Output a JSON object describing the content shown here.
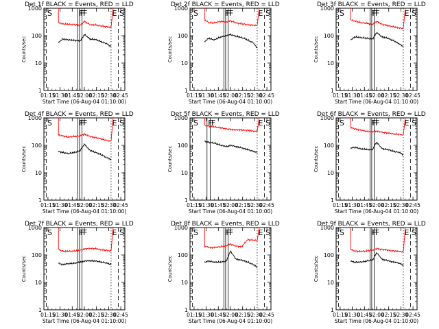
{
  "figure": {
    "xtick_labels": [
      "01:15",
      "01:30",
      "01:45",
      "02:00",
      "02:15",
      "02:30",
      "02:45"
    ],
    "ytick_labels": [
      "1",
      "10",
      "100",
      "1000"
    ],
    "ylabel": "Counts/sec",
    "xlabel": "Start Time (06-Aug-04 01:10:00)",
    "colors": {
      "events": "#000000",
      "lld": "#ff0000",
      "axes": "#000000",
      "background": "#ffffff"
    }
  },
  "chart_data": [
    {
      "type": "line",
      "title": "Det 1f BLACK = Events, RED = LLD",
      "xlabel": "Start Time (06-Aug-04 01:10:00)",
      "ylabel": "Counts/sec",
      "yscale": "log",
      "xlim": [
        "01:10",
        "02:50"
      ],
      "ylim": [
        1,
        1000
      ],
      "x": [
        "01:28",
        "01:33",
        "01:40",
        "01:48",
        "01:55",
        "02:00",
        "02:07",
        "02:14",
        "02:21",
        "02:28",
        "02:33"
      ],
      "series": [
        {
          "name": "BLACK = Events",
          "values": [
            55,
            75,
            70,
            68,
            64,
            110,
            75,
            72,
            60,
            50,
            40
          ]
        },
        {
          "name": "RED = LLD",
          "values": [
            300,
            270,
            260,
            250,
            240,
            330,
            250,
            245,
            225,
            210,
            200
          ]
        }
      ],
      "markers": [
        {
          "label": "S",
          "time": "01:13"
        },
        {
          "label": "F",
          "time": "01:52"
        },
        {
          "label": "F",
          "time": "01:54"
        },
        {
          "label": "F",
          "time": "01:57"
        },
        {
          "label": "E",
          "time": "02:33"
        },
        {
          "label": "S",
          "time": "02:42"
        }
      ]
    },
    {
      "type": "line",
      "title": "Det 2f BLACK = Events, RED = LLD",
      "xlabel": "Start Time (06-Aug-04 01:10:00)",
      "ylabel": "Counts/sec",
      "yscale": "log",
      "xlim": [
        "01:10",
        "02:50"
      ],
      "ylim": [
        1,
        1000
      ],
      "x": [
        "01:28",
        "01:33",
        "01:40",
        "01:48",
        "01:55",
        "02:00",
        "02:07",
        "02:14",
        "02:21",
        "02:28",
        "02:33"
      ],
      "series": [
        {
          "name": "BLACK = Events",
          "values": [
            60,
            80,
            70,
            90,
            100,
            110,
            95,
            85,
            70,
            55,
            35
          ]
        },
        {
          "name": "RED = LLD",
          "values": [
            380,
            300,
            290,
            330,
            310,
            350,
            290,
            270,
            250,
            240,
            230
          ]
        }
      ],
      "markers": [
        {
          "label": "S",
          "time": "01:13"
        },
        {
          "label": "F",
          "time": "01:52"
        },
        {
          "label": "F",
          "time": "01:54"
        },
        {
          "label": "F",
          "time": "01:57"
        },
        {
          "label": "E",
          "time": "02:33"
        },
        {
          "label": "S",
          "time": "02:42"
        }
      ]
    },
    {
      "type": "line",
      "title": "Det 3f BLACK = Events, RED = LLD",
      "xlabel": "Start Time (06-Aug-04 01:10:00)",
      "ylabel": "Counts/sec",
      "yscale": "log",
      "xlim": [
        "01:10",
        "02:50"
      ],
      "ylim": [
        1,
        1000
      ],
      "x": [
        "01:28",
        "01:33",
        "01:40",
        "01:48",
        "01:55",
        "02:00",
        "02:07",
        "02:14",
        "02:21",
        "02:28",
        "02:33"
      ],
      "series": [
        {
          "name": "BLACK = Events",
          "values": [
            70,
            90,
            85,
            80,
            75,
            130,
            90,
            80,
            65,
            50,
            40
          ]
        },
        {
          "name": "RED = LLD",
          "values": [
            380,
            340,
            300,
            280,
            260,
            330,
            260,
            230,
            210,
            190,
            185
          ]
        }
      ],
      "markers": [
        {
          "label": "S",
          "time": "01:13"
        },
        {
          "label": "F",
          "time": "01:52"
        },
        {
          "label": "F",
          "time": "01:54"
        },
        {
          "label": "F",
          "time": "01:57"
        },
        {
          "label": "E",
          "time": "02:33"
        },
        {
          "label": "S",
          "time": "02:42"
        }
      ]
    },
    {
      "type": "line",
      "title": "Det 4f BLACK = Events, RED = LLD",
      "xlabel": "Start Time (06-Aug-04 01:10:00)",
      "ylabel": "Counts/sec",
      "yscale": "log",
      "xlim": [
        "01:10",
        "02:50"
      ],
      "ylim": [
        1,
        1000
      ],
      "x": [
        "01:28",
        "01:33",
        "01:40",
        "01:48",
        "01:55",
        "02:00",
        "02:07",
        "02:14",
        "02:21",
        "02:28",
        "02:33"
      ],
      "series": [
        {
          "name": "BLACK = Events",
          "values": [
            60,
            55,
            50,
            55,
            65,
            110,
            65,
            55,
            45,
            35,
            30
          ]
        },
        {
          "name": "RED = LLD",
          "values": [
            240,
            220,
            200,
            210,
            220,
            260,
            210,
            190,
            170,
            150,
            140
          ]
        }
      ],
      "markers": [
        {
          "label": "S",
          "time": "01:13"
        },
        {
          "label": "F",
          "time": "01:52"
        },
        {
          "label": "F",
          "time": "01:54"
        },
        {
          "label": "F",
          "time": "01:57"
        },
        {
          "label": "E",
          "time": "02:33"
        },
        {
          "label": "S",
          "time": "02:42"
        }
      ]
    },
    {
      "type": "line",
      "title": "Det 5f BLACK = Events, RED = LLD",
      "xlabel": "Start Time (06-Aug-04 01:10:00)",
      "ylabel": "Counts/sec",
      "yscale": "log",
      "xlim": [
        "01:10",
        "02:50"
      ],
      "ylim": [
        1,
        1000
      ],
      "x": [
        "01:28",
        "01:33",
        "01:40",
        "01:48",
        "01:55",
        "02:00",
        "02:07",
        "02:14",
        "02:21",
        "02:28",
        "02:33"
      ],
      "series": [
        {
          "name": "BLACK = Events",
          "values": [
            140,
            130,
            120,
            100,
            90,
            100,
            90,
            80,
            70,
            60,
            55
          ]
        },
        {
          "name": "RED = LLD",
          "values": [
            550,
            500,
            470,
            430,
            400,
            380,
            370,
            360,
            350,
            330,
            320
          ]
        }
      ],
      "markers": [
        {
          "label": "S",
          "time": "01:13"
        },
        {
          "label": "F",
          "time": "01:31"
        },
        {
          "label": "F",
          "time": "01:35"
        },
        {
          "label": "E",
          "time": "02:33"
        },
        {
          "label": "S",
          "time": "02:42"
        }
      ]
    },
    {
      "type": "line",
      "title": "Det 6f BLACK = Events, RED = LLD",
      "xlabel": "Start Time (06-Aug-04 01:10:00)",
      "ylabel": "Counts/sec",
      "yscale": "log",
      "xlim": [
        "01:10",
        "02:50"
      ],
      "ylim": [
        1,
        1000
      ],
      "x": [
        "01:28",
        "01:33",
        "01:40",
        "01:48",
        "01:55",
        "02:00",
        "02:07",
        "02:14",
        "02:21",
        "02:28",
        "02:33"
      ],
      "series": [
        {
          "name": "BLACK = Events",
          "values": [
            80,
            85,
            75,
            70,
            70,
            130,
            75,
            70,
            60,
            55,
            45
          ]
        },
        {
          "name": "RED = LLD",
          "values": [
            450,
            400,
            360,
            320,
            310,
            330,
            300,
            280,
            260,
            250,
            240
          ]
        }
      ],
      "markers": [
        {
          "label": "S",
          "time": "01:13"
        },
        {
          "label": "F",
          "time": "01:52"
        },
        {
          "label": "F",
          "time": "01:54"
        },
        {
          "label": "F",
          "time": "01:57"
        },
        {
          "label": "E",
          "time": "02:33"
        },
        {
          "label": "S",
          "time": "02:42"
        }
      ]
    },
    {
      "type": "line",
      "title": "Det 7f BLACK = Events, RED = LLD",
      "xlabel": "Start Time (06-Aug-04 01:10:00)",
      "ylabel": "Counts/sec",
      "yscale": "log",
      "xlim": [
        "01:10",
        "02:50"
      ],
      "ylim": [
        1,
        1000
      ],
      "x": [
        "01:28",
        "01:33",
        "01:40",
        "01:48",
        "01:55",
        "02:00",
        "02:07",
        "02:14",
        "02:21",
        "02:28",
        "02:33"
      ],
      "series": [
        {
          "name": "BLACK = Events",
          "values": [
            50,
            45,
            48,
            50,
            55,
            60,
            62,
            60,
            55,
            50,
            45
          ]
        },
        {
          "name": "RED = LLD",
          "values": [
            160,
            140,
            135,
            140,
            150,
            165,
            175,
            170,
            155,
            145,
            140
          ]
        }
      ],
      "markers": [
        {
          "label": "S",
          "time": "01:13"
        },
        {
          "label": "F",
          "time": "01:52"
        },
        {
          "label": "F",
          "time": "01:54"
        },
        {
          "label": "F",
          "time": "01:57"
        },
        {
          "label": "E",
          "time": "02:33"
        },
        {
          "label": "S",
          "time": "02:42"
        }
      ]
    },
    {
      "type": "line",
      "title": "Det 8f BLACK = Events, RED = LLD",
      "xlabel": "Start Time (06-Aug-04 01:10:00)",
      "ylabel": "Counts/sec",
      "yscale": "log",
      "xlim": [
        "01:10",
        "02:50"
      ],
      "ylim": [
        1,
        1000
      ],
      "x": [
        "01:28",
        "01:33",
        "01:40",
        "01:48",
        "01:55",
        "02:00",
        "02:07",
        "02:14",
        "02:21",
        "02:28",
        "02:33"
      ],
      "series": [
        {
          "name": "BLACK = Events",
          "values": [
            55,
            60,
            55,
            55,
            60,
            140,
            70,
            65,
            55,
            45,
            35
          ]
        },
        {
          "name": "RED = LLD",
          "values": [
            210,
            190,
            185,
            200,
            215,
            250,
            210,
            200,
            360,
            350,
            330
          ]
        }
      ],
      "markers": [
        {
          "label": "S",
          "time": "01:13"
        },
        {
          "label": "F",
          "time": "01:52"
        },
        {
          "label": "F",
          "time": "01:54"
        },
        {
          "label": "F",
          "time": "01:57"
        },
        {
          "label": "E",
          "time": "02:33"
        },
        {
          "label": "S",
          "time": "02:42"
        }
      ]
    },
    {
      "type": "line",
      "title": "Det 9f BLACK = Events, RED = LLD",
      "xlabel": "Start Time (06-Aug-04 01:10:00)",
      "ylabel": "Counts/sec",
      "yscale": "log",
      "xlim": [
        "01:10",
        "02:50"
      ],
      "ylim": [
        1,
        1000
      ],
      "x": [
        "01:28",
        "01:33",
        "01:40",
        "01:48",
        "01:55",
        "02:00",
        "02:07",
        "02:14",
        "02:21",
        "02:28",
        "02:33"
      ],
      "series": [
        {
          "name": "BLACK = Events",
          "values": [
            60,
            55,
            55,
            60,
            65,
            120,
            70,
            62,
            55,
            50,
            42
          ]
        },
        {
          "name": "RED = LLD",
          "values": [
            160,
            140,
            135,
            140,
            150,
            170,
            160,
            150,
            140,
            135,
            130
          ]
        }
      ],
      "markers": [
        {
          "label": "S",
          "time": "01:13"
        },
        {
          "label": "F",
          "time": "01:52"
        },
        {
          "label": "F",
          "time": "01:54"
        },
        {
          "label": "F",
          "time": "01:57"
        },
        {
          "label": "E",
          "time": "02:33"
        },
        {
          "label": "S",
          "time": "02:42"
        }
      ]
    }
  ]
}
